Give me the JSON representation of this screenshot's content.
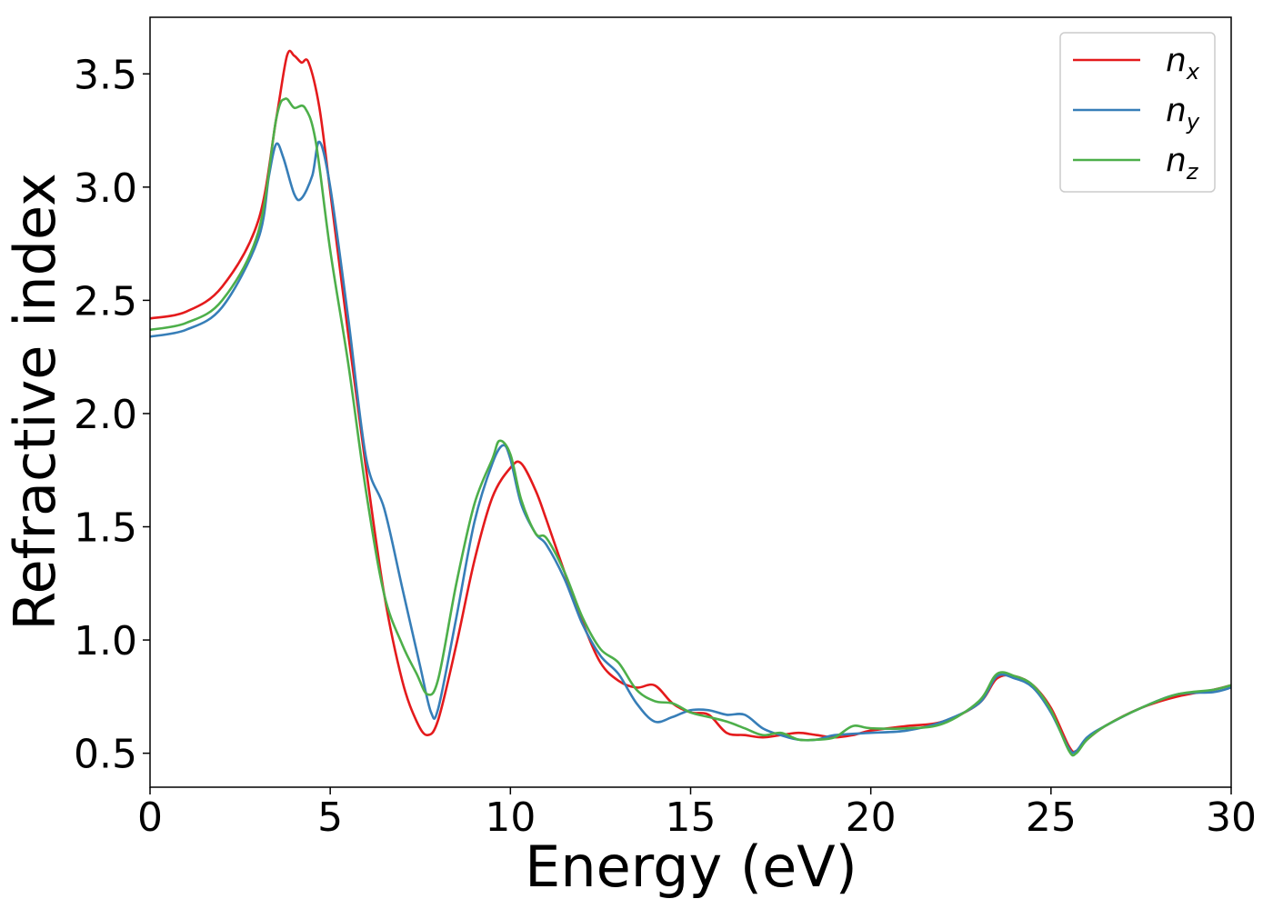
{
  "chart_data": {
    "type": "line",
    "xlabel": "Energy (eV)",
    "ylabel": "Refractive index",
    "xlim": [
      0,
      30
    ],
    "ylim": [
      0.35,
      3.75
    ],
    "xticks": [
      0,
      5,
      10,
      15,
      20,
      25,
      30
    ],
    "xtick_labels": [
      "0",
      "5",
      "10",
      "15",
      "20",
      "25",
      "30"
    ],
    "yticks": [
      0.5,
      1.0,
      1.5,
      2.0,
      2.5,
      3.0,
      3.5
    ],
    "ytick_labels": [
      "0.5",
      "1.0",
      "1.5",
      "2.0",
      "2.5",
      "3.0",
      "3.5"
    ],
    "grid": false,
    "legend_position": "top-right",
    "series": [
      {
        "name": "n",
        "subscript": "x",
        "color": "#e41a1c",
        "points": [
          [
            0,
            2.42
          ],
          [
            1,
            2.45
          ],
          [
            2,
            2.56
          ],
          [
            3,
            2.85
          ],
          [
            3.5,
            3.3
          ],
          [
            3.8,
            3.58
          ],
          [
            4.0,
            3.58
          ],
          [
            4.2,
            3.55
          ],
          [
            4.4,
            3.55
          ],
          [
            4.7,
            3.35
          ],
          [
            5.0,
            2.98
          ],
          [
            5.5,
            2.35
          ],
          [
            6.0,
            1.75
          ],
          [
            6.5,
            1.2
          ],
          [
            7.0,
            0.82
          ],
          [
            7.4,
            0.64
          ],
          [
            7.7,
            0.58
          ],
          [
            8.0,
            0.65
          ],
          [
            8.5,
            0.98
          ],
          [
            9.0,
            1.35
          ],
          [
            9.5,
            1.63
          ],
          [
            10.0,
            1.76
          ],
          [
            10.3,
            1.78
          ],
          [
            10.7,
            1.66
          ],
          [
            11.0,
            1.53
          ],
          [
            11.5,
            1.3
          ],
          [
            12.0,
            1.08
          ],
          [
            12.5,
            0.9
          ],
          [
            13.0,
            0.82
          ],
          [
            13.5,
            0.79
          ],
          [
            14.0,
            0.8
          ],
          [
            14.5,
            0.72
          ],
          [
            15.0,
            0.68
          ],
          [
            15.5,
            0.67
          ],
          [
            16.0,
            0.59
          ],
          [
            16.5,
            0.58
          ],
          [
            17.0,
            0.57
          ],
          [
            17.5,
            0.58
          ],
          [
            18.0,
            0.59
          ],
          [
            18.5,
            0.58
          ],
          [
            19.0,
            0.57
          ],
          [
            19.5,
            0.58
          ],
          [
            20.0,
            0.6
          ],
          [
            21.0,
            0.62
          ],
          [
            22.0,
            0.64
          ],
          [
            23.0,
            0.72
          ],
          [
            23.5,
            0.83
          ],
          [
            24.0,
            0.84
          ],
          [
            24.5,
            0.8
          ],
          [
            25.0,
            0.7
          ],
          [
            25.5,
            0.53
          ],
          [
            25.7,
            0.51
          ],
          [
            26.0,
            0.56
          ],
          [
            26.5,
            0.62
          ],
          [
            27.5,
            0.7
          ],
          [
            28.5,
            0.75
          ],
          [
            29.5,
            0.78
          ],
          [
            30.0,
            0.8
          ]
        ]
      },
      {
        "name": "n",
        "subscript": "y",
        "color": "#377eb8",
        "points": [
          [
            0,
            2.34
          ],
          [
            1,
            2.37
          ],
          [
            2,
            2.47
          ],
          [
            3,
            2.77
          ],
          [
            3.3,
            3.05
          ],
          [
            3.5,
            3.19
          ],
          [
            3.7,
            3.13
          ],
          [
            4.0,
            2.97
          ],
          [
            4.2,
            2.95
          ],
          [
            4.5,
            3.05
          ],
          [
            4.7,
            3.2
          ],
          [
            5.0,
            3.0
          ],
          [
            5.5,
            2.42
          ],
          [
            6.0,
            1.8
          ],
          [
            6.5,
            1.58
          ],
          [
            7.0,
            1.23
          ],
          [
            7.5,
            0.88
          ],
          [
            7.8,
            0.68
          ],
          [
            8.0,
            0.7
          ],
          [
            8.5,
            1.1
          ],
          [
            9.0,
            1.52
          ],
          [
            9.5,
            1.78
          ],
          [
            9.8,
            1.86
          ],
          [
            10.0,
            1.8
          ],
          [
            10.3,
            1.6
          ],
          [
            10.7,
            1.47
          ],
          [
            11.0,
            1.42
          ],
          [
            11.5,
            1.27
          ],
          [
            12.0,
            1.07
          ],
          [
            12.5,
            0.93
          ],
          [
            13.0,
            0.85
          ],
          [
            13.5,
            0.72
          ],
          [
            14.0,
            0.64
          ],
          [
            14.5,
            0.66
          ],
          [
            15.0,
            0.69
          ],
          [
            15.5,
            0.69
          ],
          [
            16.0,
            0.67
          ],
          [
            16.5,
            0.67
          ],
          [
            17.0,
            0.61
          ],
          [
            17.5,
            0.58
          ],
          [
            18.0,
            0.56
          ],
          [
            18.5,
            0.56
          ],
          [
            19.0,
            0.58
          ],
          [
            20.0,
            0.59
          ],
          [
            21.0,
            0.6
          ],
          [
            22.0,
            0.64
          ],
          [
            23.0,
            0.72
          ],
          [
            23.5,
            0.84
          ],
          [
            24.0,
            0.83
          ],
          [
            24.5,
            0.79
          ],
          [
            25.0,
            0.68
          ],
          [
            25.5,
            0.52
          ],
          [
            25.7,
            0.51
          ],
          [
            26.0,
            0.57
          ],
          [
            26.5,
            0.62
          ],
          [
            27.5,
            0.7
          ],
          [
            28.5,
            0.76
          ],
          [
            29.5,
            0.77
          ],
          [
            30.0,
            0.79
          ]
        ]
      },
      {
        "name": "n",
        "subscript": "z",
        "color": "#4daf4a",
        "points": [
          [
            0,
            2.37
          ],
          [
            1,
            2.4
          ],
          [
            2,
            2.5
          ],
          [
            3,
            2.8
          ],
          [
            3.5,
            3.3
          ],
          [
            3.75,
            3.39
          ],
          [
            4.0,
            3.35
          ],
          [
            4.3,
            3.35
          ],
          [
            4.6,
            3.2
          ],
          [
            5.0,
            2.72
          ],
          [
            5.5,
            2.22
          ],
          [
            6.0,
            1.65
          ],
          [
            6.5,
            1.2
          ],
          [
            7.0,
            0.98
          ],
          [
            7.4,
            0.85
          ],
          [
            7.7,
            0.76
          ],
          [
            8.0,
            0.83
          ],
          [
            8.5,
            1.25
          ],
          [
            9.0,
            1.6
          ],
          [
            9.5,
            1.8
          ],
          [
            9.7,
            1.88
          ],
          [
            10.0,
            1.82
          ],
          [
            10.3,
            1.62
          ],
          [
            10.7,
            1.47
          ],
          [
            11.0,
            1.45
          ],
          [
            11.5,
            1.3
          ],
          [
            12.0,
            1.1
          ],
          [
            12.5,
            0.96
          ],
          [
            13.0,
            0.9
          ],
          [
            13.5,
            0.78
          ],
          [
            14.0,
            0.73
          ],
          [
            14.5,
            0.72
          ],
          [
            15.0,
            0.68
          ],
          [
            15.5,
            0.66
          ],
          [
            16.0,
            0.64
          ],
          [
            16.5,
            0.61
          ],
          [
            17.0,
            0.58
          ],
          [
            17.5,
            0.59
          ],
          [
            18.0,
            0.56
          ],
          [
            18.5,
            0.56
          ],
          [
            19.0,
            0.57
          ],
          [
            19.5,
            0.62
          ],
          [
            20.0,
            0.61
          ],
          [
            21.0,
            0.61
          ],
          [
            22.0,
            0.63
          ],
          [
            23.0,
            0.73
          ],
          [
            23.5,
            0.85
          ],
          [
            24.0,
            0.84
          ],
          [
            24.5,
            0.8
          ],
          [
            25.0,
            0.69
          ],
          [
            25.5,
            0.51
          ],
          [
            25.7,
            0.5
          ],
          [
            26.0,
            0.56
          ],
          [
            26.5,
            0.62
          ],
          [
            27.5,
            0.7
          ],
          [
            28.5,
            0.76
          ],
          [
            29.5,
            0.78
          ],
          [
            30.0,
            0.8
          ]
        ]
      }
    ]
  }
}
